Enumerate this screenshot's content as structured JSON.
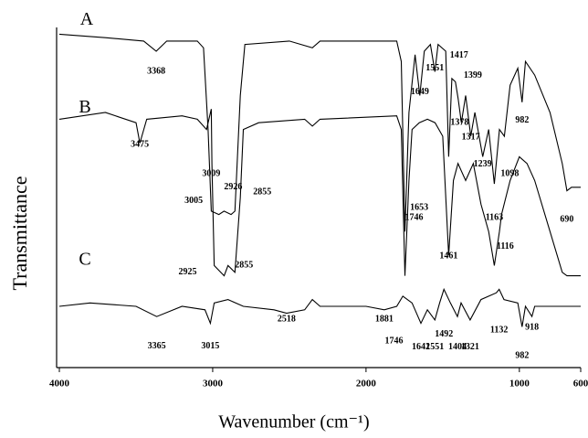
{
  "chart_data": {
    "type": "line",
    "xlabel": "Wavenumber (cm⁻¹)",
    "ylabel": "Transmittance",
    "xlim": [
      4000,
      600
    ],
    "xticks": [
      4000,
      3000,
      2000,
      1000,
      600
    ],
    "ylim": [
      0,
      100
    ],
    "series": [
      {
        "name": "A",
        "color": "#000000",
        "x": [
          4000,
          3700,
          3450,
          3368,
          3300,
          3100,
          3060,
          3030,
          3009,
          2960,
          2926,
          2880,
          2855,
          2820,
          2790,
          2500,
          2350,
          2300,
          1800,
          1770,
          1746,
          1720,
          1680,
          1649,
          1620,
          1580,
          1551,
          1530,
          1480,
          1461,
          1440,
          1417,
          1399,
          1378,
          1350,
          1317,
          1290,
          1239,
          1200,
          1163,
          1130,
          1098,
          1060,
          1010,
          982,
          960,
          900,
          800,
          720,
          690,
          660,
          600
        ],
        "values": [
          98,
          97,
          96,
          93,
          96,
          96,
          94,
          70,
          46,
          45,
          46,
          45,
          46,
          80,
          95,
          96,
          94,
          96,
          96,
          90,
          40,
          75,
          92,
          80,
          93,
          95,
          87,
          95,
          93,
          62,
          85,
          84,
          79,
          72,
          80,
          68,
          75,
          62,
          70,
          54,
          70,
          68,
          83,
          88,
          78,
          90,
          86,
          75,
          60,
          52,
          53,
          53
        ]
      },
      {
        "name": "B",
        "color": "#000000",
        "x": [
          4000,
          3700,
          3500,
          3475,
          3430,
          3200,
          3100,
          3040,
          3009,
          3005,
          2990,
          2925,
          2900,
          2855,
          2820,
          2800,
          2700,
          2400,
          2350,
          2300,
          1800,
          1770,
          1746,
          1720,
          1700,
          1653,
          1600,
          1550,
          1500,
          1461,
          1430,
          1400,
          1350,
          1300,
          1250,
          1200,
          1163,
          1130,
          1116,
          1060,
          1000,
          950,
          900,
          800,
          720,
          690,
          600
        ],
        "values": [
          73,
          75,
          72,
          66,
          73,
          74,
          73,
          70,
          76,
          60,
          30,
          27,
          30,
          28,
          50,
          70,
          72,
          73,
          71,
          73,
          74,
          70,
          27,
          55,
          70,
          72,
          73,
          72,
          68,
          33,
          55,
          60,
          55,
          60,
          48,
          40,
          30,
          40,
          45,
          55,
          62,
          60,
          55,
          40,
          28,
          27,
          27
        ]
      },
      {
        "name": "C",
        "color": "#000000",
        "x": [
          4000,
          3800,
          3500,
          3365,
          3200,
          3050,
          3015,
          2990,
          2900,
          2800,
          2600,
          2518,
          2400,
          2350,
          2300,
          2000,
          1881,
          1800,
          1760,
          1700,
          1642,
          1600,
          1551,
          1520,
          1492,
          1450,
          1404,
          1380,
          1321,
          1250,
          1150,
          1132,
          1100,
          1010,
          982,
          960,
          918,
          900,
          800,
          600
        ],
        "values": [
          18,
          19,
          18,
          15,
          18,
          17,
          13,
          19,
          20,
          18,
          17,
          16,
          17,
          20,
          18,
          18,
          17,
          18,
          21,
          19,
          13,
          17,
          14,
          19,
          23,
          19,
          15,
          19,
          14,
          20,
          22,
          23,
          20,
          19,
          12,
          18,
          15,
          18,
          18,
          18
        ]
      }
    ],
    "annotations": [
      {
        "x": 3368,
        "y": 87
      },
      {
        "x": 3009,
        "y": 57
      },
      {
        "x": 2926,
        "y": 53
      },
      {
        "x": 2855,
        "y": 51.6
      },
      {
        "x": 3475,
        "y": 65.6
      },
      {
        "x": 3005,
        "y": 49
      },
      {
        "x": 2925,
        "y": 28
      },
      {
        "x": 2855,
        "y": 30
      },
      {
        "x": 1746,
        "y": 44
      },
      {
        "x": 1746,
        "y": 7.8
      },
      {
        "x": 1653,
        "y": 47
      },
      {
        "x": 1649,
        "y": 81
      },
      {
        "x": 1551,
        "y": 88
      },
      {
        "x": 1417,
        "y": 91.7
      },
      {
        "x": 1399,
        "y": 85.8
      },
      {
        "x": 1378,
        "y": 72
      },
      {
        "x": 1317,
        "y": 67.7
      },
      {
        "x": 1239,
        "y": 59.7
      },
      {
        "x": 1098,
        "y": 57
      },
      {
        "x": 982,
        "y": 72.6
      },
      {
        "x": 1163,
        "y": 44
      },
      {
        "x": 690,
        "y": 43.5
      },
      {
        "x": 1461,
        "y": 32.8
      },
      {
        "x": 1116,
        "y": 35.5
      },
      {
        "x": 3365,
        "y": 6.2
      },
      {
        "x": 3015,
        "y": 6.2
      },
      {
        "x": 2518,
        "y": 14.2
      },
      {
        "x": 1881,
        "y": 14.2
      },
      {
        "x": 1642,
        "y": 6
      },
      {
        "x": 1551,
        "y": 6
      },
      {
        "x": 1492,
        "y": 9.7
      },
      {
        "x": 1404,
        "y": 6
      },
      {
        "x": 1321,
        "y": 6
      },
      {
        "x": 1132,
        "y": 11
      },
      {
        "x": 982,
        "y": 3.5
      },
      {
        "x": 918,
        "y": 11.8
      }
    ]
  }
}
